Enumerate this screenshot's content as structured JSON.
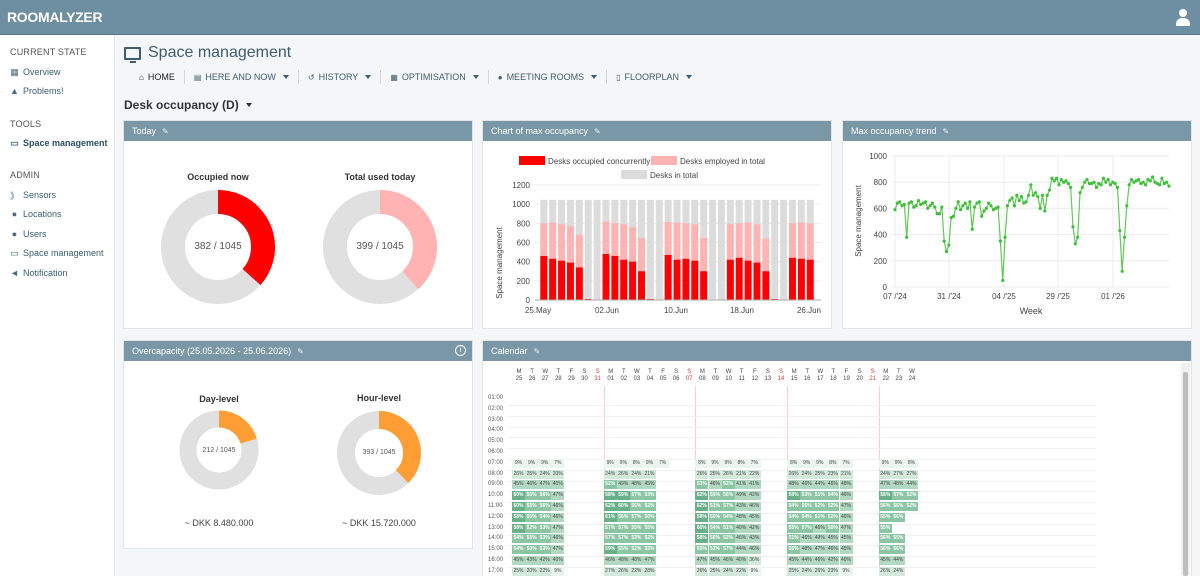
{
  "app": {
    "logo": "ROOMALYZER",
    "user_icon": "user-icon"
  },
  "sidebar": {
    "sections": [
      {
        "label": "CURRENT STATE",
        "items": [
          {
            "label": "Overview",
            "icon": "table-icon"
          },
          {
            "label": "Problems!",
            "icon": "warning-icon"
          }
        ]
      },
      {
        "label": "TOOLS",
        "items": [
          {
            "label": "Space management",
            "icon": "monitor-icon",
            "active": true
          }
        ]
      },
      {
        "label": "ADMIN",
        "items": [
          {
            "label": "Sensors",
            "icon": "rss-icon"
          },
          {
            "label": "Locations",
            "icon": "map-marker-icon"
          },
          {
            "label": "Users",
            "icon": "users-icon"
          },
          {
            "label": "Space management",
            "icon": "monitor-icon"
          },
          {
            "label": "Notification",
            "icon": "bullhorn-icon"
          }
        ]
      }
    ]
  },
  "header": {
    "title": "Space management"
  },
  "nav": [
    {
      "label": "HOME",
      "icon": "home-icon"
    },
    {
      "label": "HERE AND NOW",
      "icon": "calendar-icon"
    },
    {
      "label": "HISTORY",
      "icon": "history-icon"
    },
    {
      "label": "OPTIMISATION",
      "icon": "bar-table-icon"
    },
    {
      "label": "MEETING ROOMS",
      "icon": "users-icon"
    },
    {
      "label": "FLOORPLAN",
      "icon": "map-icon"
    }
  ],
  "view_selector": "Desk occupancy (D)",
  "today": {
    "title": "Today",
    "occupied": {
      "label": "Occupied now",
      "text": "382 / 1045",
      "value": 382,
      "total": 1045,
      "color": "#ff0000"
    },
    "used": {
      "label": "Total used today",
      "text": "399 / 1045",
      "value": 399,
      "total": 1045,
      "color": "#ffb3b3"
    }
  },
  "overcapacity": {
    "title": "Overcapacity (25.05.2026 - 25.06.2026)",
    "day": {
      "label": "Day-level",
      "text": "212 / 1045",
      "value": 212,
      "total": 1045,
      "price": "~ DKK 8.480.000"
    },
    "hour": {
      "label": "Hour-level",
      "text": "393 / 1045",
      "value": 393,
      "total": 1045,
      "price": "~ DKK 15.720.000"
    },
    "color": "#ff9e35"
  },
  "max_chart": {
    "title": "Chart of max occupancy",
    "legend": [
      "Desks occupied concurrently",
      "Desks employed in total",
      "Desks in total"
    ],
    "ylabel": "Space management",
    "xticks": [
      "25.May",
      "02.Jun",
      "10.Jun",
      "18.Jun",
      "26.Jun"
    ],
    "yticks": [
      "0",
      "200",
      "400",
      "600",
      "800",
      "1000",
      "1200"
    ]
  },
  "trend_chart": {
    "title": "Max occupancy trend",
    "ylabel": "Space management",
    "xlabel": "Week",
    "xticks": [
      "07 /'24",
      "31 /'24",
      "04 /'25",
      "29 /'25",
      "01 /'26"
    ],
    "yticks": [
      "0",
      "200",
      "400",
      "600",
      "800",
      "1000"
    ]
  },
  "chart_data": [
    {
      "type": "bar",
      "title": "Chart of max occupancy",
      "ylabel": "Space management",
      "ylim": [
        0,
        1200
      ],
      "x_range": [
        "25.May",
        "26.Jun"
      ],
      "categories": [
        "25.May",
        "26.May",
        "27.May",
        "28.May",
        "29.May",
        "30.May",
        "31.May",
        "01.Jun",
        "02.Jun",
        "03.Jun",
        "04.Jun",
        "05.Jun",
        "06.Jun",
        "07.Jun",
        "08.Jun",
        "09.Jun",
        "10.Jun",
        "11.Jun",
        "12.Jun",
        "13.Jun",
        "14.Jun",
        "15.Jun",
        "16.Jun",
        "17.Jun",
        "18.Jun",
        "19.Jun",
        "20.Jun",
        "21.Jun",
        "22.Jun",
        "23.Jun",
        "24.Jun"
      ],
      "series": [
        {
          "name": "Desks in total",
          "values": [
            1045,
            1045,
            1045,
            1045,
            1045,
            1045,
            1045,
            1045,
            1045,
            1045,
            1045,
            1045,
            1045,
            1045,
            1045,
            1045,
            1045,
            1045,
            1045,
            1045,
            1045,
            1045,
            1045,
            1045,
            1045,
            1045,
            1045,
            1045,
            1045,
            1045,
            1045
          ]
        },
        {
          "name": "Desks employed in total",
          "values": [
            800,
            810,
            790,
            770,
            680,
            0,
            0,
            820,
            800,
            790,
            760,
            650,
            0,
            0,
            815,
            810,
            800,
            790,
            650,
            0,
            0,
            790,
            800,
            810,
            790,
            640,
            0,
            0,
            800,
            810,
            800
          ]
        },
        {
          "name": "Desks occupied concurrently",
          "values": [
            460,
            430,
            410,
            390,
            340,
            10,
            5,
            480,
            460,
            420,
            400,
            300,
            10,
            5,
            470,
            420,
            430,
            410,
            300,
            5,
            5,
            420,
            440,
            410,
            390,
            300,
            10,
            5,
            440,
            430,
            420
          ]
        }
      ]
    },
    {
      "type": "line",
      "title": "Max occupancy trend",
      "ylabel": "Space management",
      "xlabel": "Week",
      "ylim": [
        0,
        1000
      ],
      "x_ticks": [
        "07 /'24",
        "31 /'24",
        "04 /'25",
        "29 /'25",
        "01 /'26"
      ],
      "series": [
        {
          "name": "",
          "values": [
            590,
            640,
            650,
            620,
            630,
            380,
            640,
            650,
            610,
            620,
            660,
            630,
            640,
            650,
            600,
            620,
            640,
            610,
            560,
            560,
            610,
            350,
            270,
            320,
            530,
            540,
            600,
            650,
            590,
            620,
            640,
            600,
            650,
            440,
            610,
            640,
            650,
            540,
            580,
            600,
            640,
            620,
            590,
            600,
            610,
            350,
            50,
            380,
            620,
            660,
            680,
            620,
            700,
            660,
            690,
            640,
            650,
            700,
            780,
            700,
            720,
            690,
            600,
            700,
            580,
            700,
            740,
            830,
            810,
            830,
            780,
            820,
            800,
            810,
            790,
            760,
            460,
            330,
            380,
            720,
            760,
            800,
            820,
            790,
            790,
            800,
            760,
            790,
            780,
            830,
            800,
            820,
            780,
            800,
            790,
            760,
            430,
            120,
            380,
            620,
            780,
            820,
            800,
            810,
            820,
            790,
            800,
            780,
            820,
            810,
            840,
            800,
            790,
            780,
            830,
            790,
            800,
            770
          ]
        }
      ]
    }
  ],
  "calendar": {
    "title": "Calendar",
    "days": [
      {
        "dow": "M",
        "d": "25"
      },
      {
        "dow": "T",
        "d": "26"
      },
      {
        "dow": "W",
        "d": "27"
      },
      {
        "dow": "T",
        "d": "28"
      },
      {
        "dow": "F",
        "d": "29"
      },
      {
        "dow": "S",
        "d": "30"
      },
      {
        "dow": "S",
        "d": "31",
        "red": true
      },
      {
        "dow": "M",
        "d": "01"
      },
      {
        "dow": "T",
        "d": "02"
      },
      {
        "dow": "W",
        "d": "03"
      },
      {
        "dow": "T",
        "d": "04"
      },
      {
        "dow": "F",
        "d": "05"
      },
      {
        "dow": "S",
        "d": "06"
      },
      {
        "dow": "S",
        "d": "07",
        "red": true
      },
      {
        "dow": "M",
        "d": "08"
      },
      {
        "dow": "T",
        "d": "09"
      },
      {
        "dow": "W",
        "d": "10"
      },
      {
        "dow": "T",
        "d": "11"
      },
      {
        "dow": "F",
        "d": "12"
      },
      {
        "dow": "S",
        "d": "13"
      },
      {
        "dow": "S",
        "d": "14",
        "red": true
      },
      {
        "dow": "M",
        "d": "15"
      },
      {
        "dow": "T",
        "d": "16"
      },
      {
        "dow": "W",
        "d": "17"
      },
      {
        "dow": "T",
        "d": "18"
      },
      {
        "dow": "F",
        "d": "19"
      },
      {
        "dow": "S",
        "d": "20"
      },
      {
        "dow": "S",
        "d": "21",
        "red": true
      },
      {
        "dow": "M",
        "d": "22"
      },
      {
        "dow": "T",
        "d": "23"
      },
      {
        "dow": "W",
        "d": "24"
      }
    ],
    "times": [
      "01:00",
      "02:00",
      "03:00",
      "04:00",
      "05:00",
      "06:00",
      "07:00",
      "08:00",
      "09:00",
      "10:00",
      "11:00",
      "12:00",
      "13:00",
      "14:00",
      "15:00",
      "16:00",
      "17:00"
    ],
    "rows": [
      {
        "t": "07:00",
        "v": [
          "9%",
          "9%",
          "9%",
          "7%",
          "",
          "",
          "",
          "9%",
          "9%",
          "8%",
          "9%",
          "7%",
          "",
          "",
          "8%",
          "9%",
          "9%",
          "8%",
          "7%",
          "",
          "",
          "8%",
          "9%",
          "9%",
          "8%",
          "7%",
          "",
          "",
          "9%",
          "9%",
          "8%"
        ]
      },
      {
        "t": "08:00",
        "v": [
          "26%",
          "25%",
          "24%",
          "20%",
          "",
          "",
          "",
          "24%",
          "26%",
          "24%",
          "21%",
          "",
          "",
          "",
          "26%",
          "25%",
          "26%",
          "21%",
          "22%",
          "",
          "",
          "26%",
          "24%",
          "25%",
          "23%",
          "21%",
          "",
          "",
          "24%",
          "27%",
          "27%"
        ]
      },
      {
        "t": "09:00",
        "v": [
          "45%",
          "46%",
          "47%",
          "40%",
          "",
          "",
          "",
          "52%",
          "49%",
          "48%",
          "45%",
          "",
          "",
          "",
          "53%",
          "46%",
          "52%",
          "41%",
          "41%",
          "",
          "",
          "48%",
          "46%",
          "44%",
          "46%",
          "48%",
          "",
          "",
          "47%",
          "48%",
          "44%"
        ]
      },
      {
        "t": "10:00",
        "v": [
          "60%",
          "55%",
          "56%",
          "47%",
          "",
          "",
          "",
          "58%",
          "59%",
          "57%",
          "53%",
          "",
          "",
          "",
          "62%",
          "55%",
          "56%",
          "49%",
          "42%",
          "",
          "",
          "58%",
          "53%",
          "51%",
          "54%",
          "46%",
          "",
          "",
          "58%",
          "57%",
          "52%"
        ]
      },
      {
        "t": "10:00",
        "v": [
          "60%",
          "55%",
          "56%",
          "46%",
          "",
          "",
          "",
          "62%",
          "60%",
          "56%",
          "52%",
          "",
          "",
          "",
          "62%",
          "51%",
          "57%",
          "43%",
          "46%",
          "",
          "",
          "54%",
          "55%",
          "52%",
          "52%",
          "47%",
          "",
          "",
          "56%",
          "56%",
          "52%"
        ]
      },
      {
        "t": "11:00",
        "v": [
          "58%",
          "55%",
          "54%",
          "46%",
          "",
          "",
          "",
          "61%",
          "56%",
          "57%",
          "50%",
          "",
          "",
          "",
          "58%",
          "55%",
          "54%",
          "48%",
          "45%",
          "",
          "",
          "54%",
          "54%",
          "51%",
          "52%",
          "46%",
          "",
          "",
          "55%",
          "56%",
          ""
        ]
      },
      {
        "t": "12:00",
        "v": [
          "58%",
          "52%",
          "53%",
          "47%",
          "",
          "",
          "",
          "57%",
          "57%",
          "55%",
          "55%",
          "",
          "",
          "",
          "60%",
          "54%",
          "51%",
          "40%",
          "42%",
          "",
          "",
          "55%",
          "57%",
          "46%",
          "50%",
          "47%",
          "",
          "",
          "55%",
          "",
          ""
        ]
      },
      {
        "t": "13:00",
        "v": [
          "54%",
          "55%",
          "53%",
          "46%",
          "",
          "",
          "",
          "57%",
          "57%",
          "53%",
          "52%",
          "",
          "",
          "",
          "58%",
          "56%",
          "52%",
          "46%",
          "43%",
          "",
          "",
          "51%",
          "46%",
          "49%",
          "45%",
          "45%",
          "",
          "",
          "56%",
          "55%",
          ""
        ]
      },
      {
        "t": "14:00",
        "v": [
          "54%",
          "50%",
          "53%",
          "47%",
          "",
          "",
          "",
          "59%",
          "55%",
          "52%",
          "55%",
          "",
          "",
          "",
          "55%",
          "52%",
          "57%",
          "44%",
          "46%",
          "",
          "",
          "55%",
          "48%",
          "47%",
          "46%",
          "45%",
          "",
          "",
          "56%",
          "56%",
          ""
        ]
      },
      {
        "t": "15:00",
        "v": [
          "45%",
          "43%",
          "42%",
          "40%",
          "",
          "",
          "",
          "46%",
          "48%",
          "48%",
          "47%",
          "",
          "",
          "",
          "47%",
          "45%",
          "46%",
          "40%",
          "36%",
          "",
          "",
          "45%",
          "44%",
          "46%",
          "42%",
          "40%",
          "",
          "",
          "45%",
          "44%",
          ""
        ]
      },
      {
        "t": "16:00",
        "v": [
          "25%",
          "20%",
          "22%",
          "9%",
          "",
          "",
          "",
          "27%",
          "26%",
          "22%",
          "28%",
          "",
          "",
          "",
          "26%",
          "25%",
          "24%",
          "22%",
          "9%",
          "",
          "",
          "25%",
          "24%",
          "26%",
          "23%",
          "9%",
          "",
          "",
          "26%",
          "24%",
          ""
        ]
      },
      {
        "t": "17:00",
        "v": [
          "8%",
          "7%",
          "6%",
          "",
          "",
          "",
          "",
          "9%",
          "7%",
          "7%",
          "7%",
          "",
          "",
          "",
          "8%",
          "7%",
          "8%",
          "",
          "",
          "",
          "",
          "8%",
          "8%",
          "6%",
          "",
          "",
          "",
          "",
          "8%",
          "6%",
          ""
        ]
      }
    ]
  }
}
